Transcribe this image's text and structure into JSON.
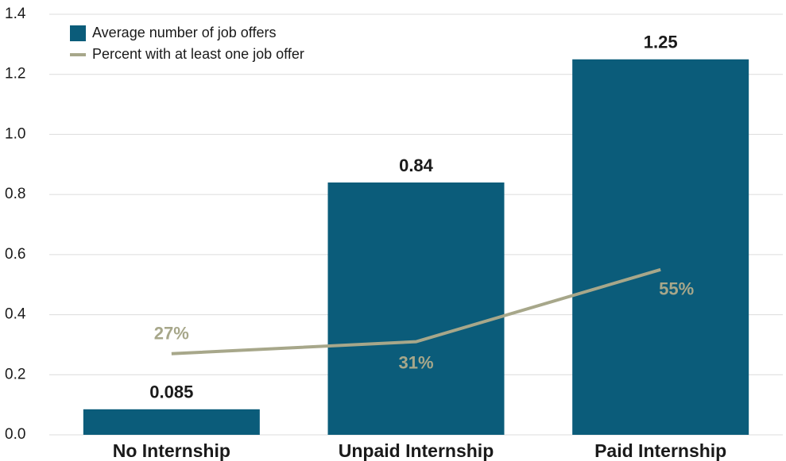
{
  "chart_data": {
    "type": "bar",
    "categories": [
      "No Internship",
      "Unpaid Internship",
      "Paid Internship"
    ],
    "series": [
      {
        "name": "Average number of job offers",
        "type": "bar",
        "color": "#0b5c7a",
        "values": [
          0.085,
          0.84,
          1.25
        ]
      },
      {
        "name": "Percent with at least one job offer",
        "type": "line",
        "axis": "y2",
        "color": "#a7a78a",
        "values": [
          27,
          31,
          55
        ],
        "value_labels": [
          "27%",
          "31%",
          "55%"
        ]
      }
    ],
    "ylim": [
      0,
      1.4
    ],
    "yticks": [
      {
        "value": 0,
        "label": "0.0"
      },
      0.2,
      0.4,
      0.6,
      0.8,
      {
        "value": 1,
        "label": "1.0"
      },
      1.2,
      1.4
    ],
    "y2lim": [
      0,
      140
    ],
    "grid": true,
    "legend": "top-left"
  }
}
